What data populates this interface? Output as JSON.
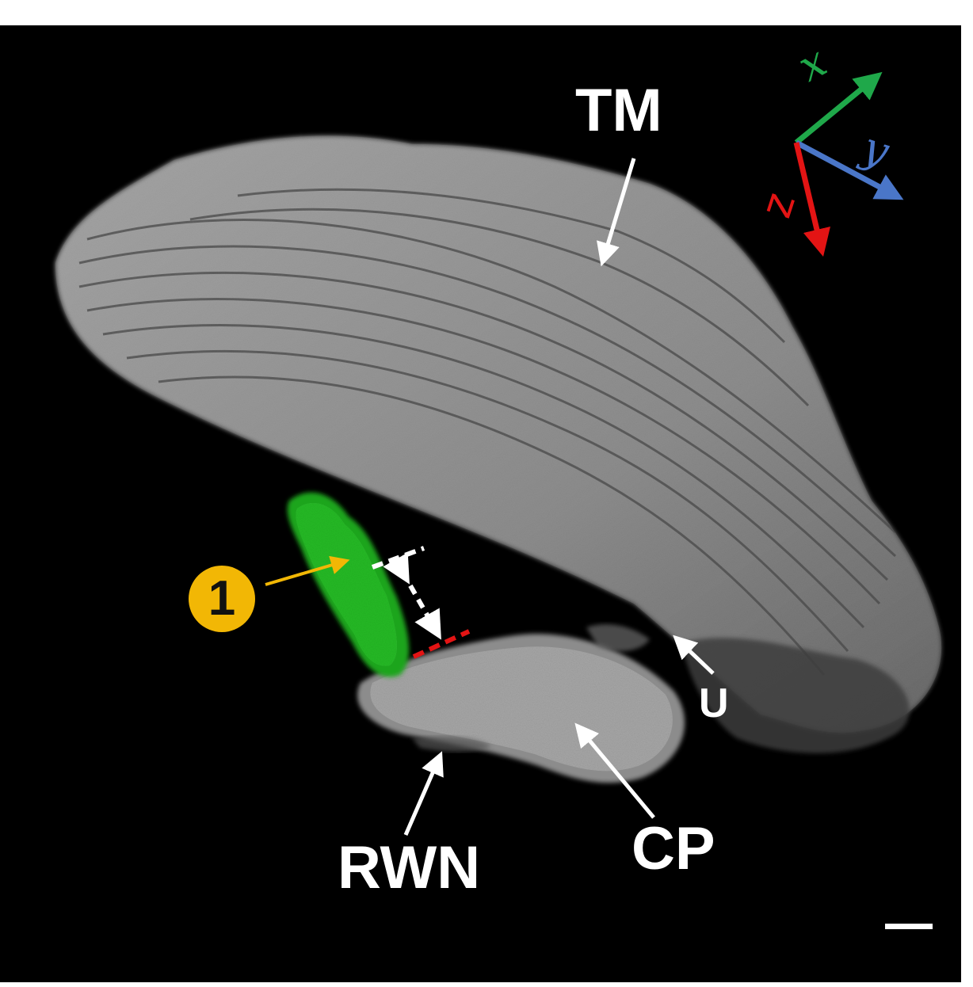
{
  "labels": {
    "tm": "TM",
    "rwn": "RWN",
    "cp": "CP",
    "u": "U",
    "marker": "1"
  },
  "axes": {
    "x": "x",
    "y": "y",
    "z": "z"
  },
  "colors": {
    "background": "#000000",
    "tissue": "#9a9a9a",
    "green_region": "#1fa51f",
    "marker": "#f2b705",
    "axis_x": "#1fa84a",
    "axis_y": "#4a76c8",
    "axis_z": "#e31414",
    "distance_top": "#ffffff",
    "distance_bottom": "#e31414"
  }
}
